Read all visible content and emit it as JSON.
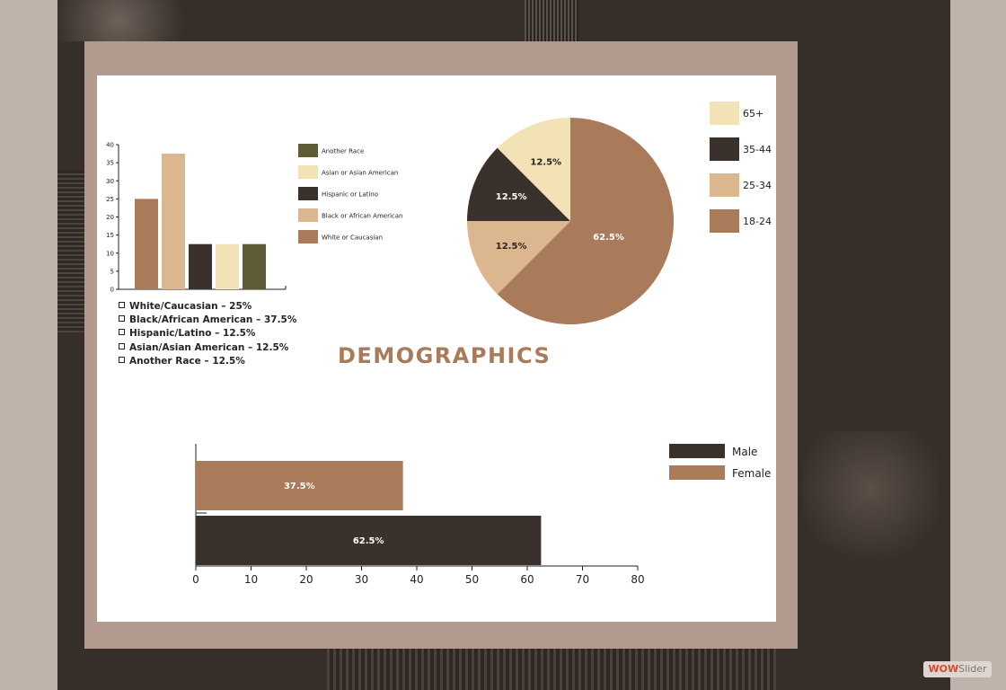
{
  "theme": {
    "brown": "#a97b5a",
    "tan": "#dcb68e",
    "dark": "#3a302c",
    "cream": "#f2e2b5",
    "olive": "#5e5b36",
    "frame": "#b39a8e",
    "backdrop": "#352e29"
  },
  "title": "DEMOGRAPHICS",
  "race_list": [
    "White/Caucasian – 25%",
    "Black/African American – 37.5%",
    "Hispanic/Latino – 12.5%",
    "Asian/Asian American – 12.5%",
    "Another Race – 12.5%"
  ],
  "watermark": {
    "brand": "WOW",
    "suffix": "Slider"
  },
  "chart_data": [
    {
      "type": "bar",
      "categories": [
        "White or Caucasian",
        "Black or African American",
        "Hispanic or Latino",
        "Asian or Asian American",
        "Another Race"
      ],
      "values": [
        25,
        37.5,
        12.5,
        12.5,
        12.5
      ],
      "colors": [
        "#a97b5a",
        "#dcb68e",
        "#3a302c",
        "#f2e2b5",
        "#5e5b36"
      ],
      "yticks": [
        0,
        5,
        10,
        15,
        20,
        25,
        30,
        35,
        40
      ],
      "ylim": [
        0,
        40
      ],
      "legend": [
        {
          "label": "Another Race",
          "color": "#5e5b36"
        },
        {
          "label": "Asian or Asian American",
          "color": "#f2e2b5"
        },
        {
          "label": "Hispanic or Latino",
          "color": "#3a302c"
        },
        {
          "label": "Black or African American",
          "color": "#dcb68e"
        },
        {
          "label": "White or Caucasian",
          "color": "#a97b5a"
        }
      ],
      "legend_position": "right"
    },
    {
      "type": "pie",
      "slices": [
        {
          "label": "18-24",
          "value": 62.5,
          "text": "62.5%",
          "color": "#a97b5a"
        },
        {
          "label": "25-34",
          "value": 12.5,
          "text": "12.5%",
          "color": "#dcb68e"
        },
        {
          "label": "35-44",
          "value": 12.5,
          "text": "12.5%",
          "color": "#3a302c"
        },
        {
          "label": "65+",
          "value": 12.5,
          "text": "12.5%",
          "color": "#f2e2b5"
        }
      ],
      "legend": [
        {
          "label": "65+",
          "color": "#f2e2b5"
        },
        {
          "label": "35-44",
          "color": "#3a302c"
        },
        {
          "label": "25-34",
          "color": "#dcb68e"
        },
        {
          "label": "18-24",
          "color": "#a97b5a"
        }
      ],
      "legend_position": "right"
    },
    {
      "type": "bar",
      "orientation": "horizontal",
      "series": [
        {
          "name": "Female",
          "value": 37.5,
          "text": "37.5%",
          "color": "#a97b5a"
        },
        {
          "name": "Male",
          "value": 62.5,
          "text": "62.5%",
          "color": "#3a302c"
        }
      ],
      "xticks": [
        0,
        10,
        20,
        30,
        40,
        50,
        60,
        70,
        80
      ],
      "xlim": [
        0,
        80
      ],
      "legend": [
        {
          "label": "Male",
          "color": "#3a302c"
        },
        {
          "label": "Female",
          "color": "#a97b5a"
        }
      ],
      "legend_position": "right"
    }
  ]
}
